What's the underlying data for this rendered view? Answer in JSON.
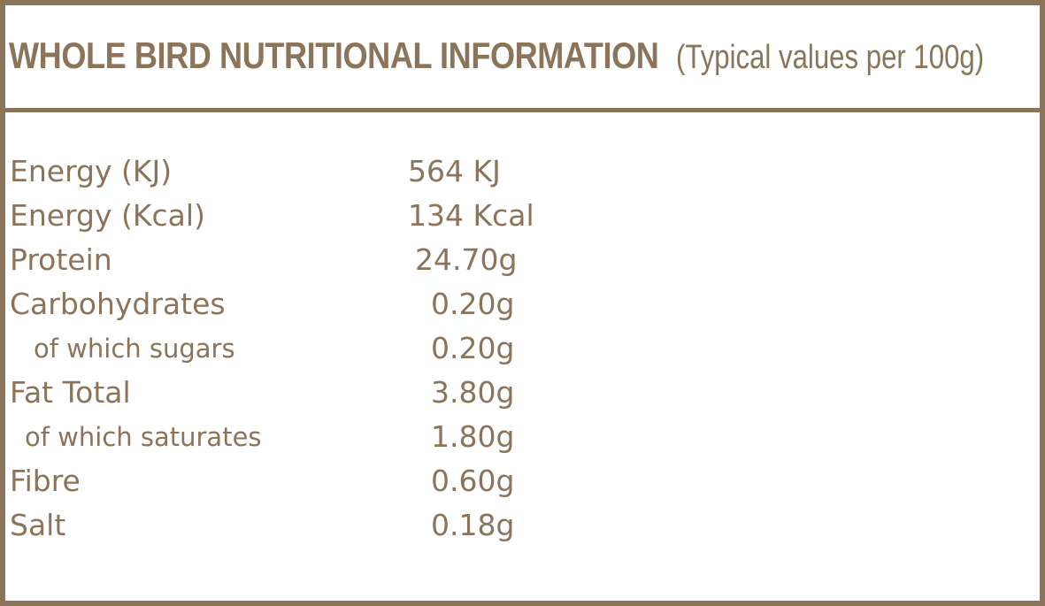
{
  "header": {
    "title": "WHOLE BIRD NUTRITIONAL INFORMATION",
    "subtitle": "(Typical values per 100g)"
  },
  "rows": [
    {
      "label": "Energy (KJ)",
      "value": "564 KJ"
    },
    {
      "label": "Energy (Kcal)",
      "value": "134 Kcal"
    },
    {
      "label": "Protein",
      "value": "24.70g"
    },
    {
      "label": "Carbohydrates",
      "value": "0.20g"
    },
    {
      "label": "of which sugars",
      "value": "0.20g"
    },
    {
      "label": "Fat Total",
      "value": "3.80g"
    },
    {
      "label": "of which saturates",
      "value": "1.80g"
    },
    {
      "label": "Fibre",
      "value": "0.60g"
    },
    {
      "label": "Salt",
      "value": "0.18g"
    }
  ],
  "colors": {
    "accent": "#8b7459",
    "background": "#ffffff"
  }
}
